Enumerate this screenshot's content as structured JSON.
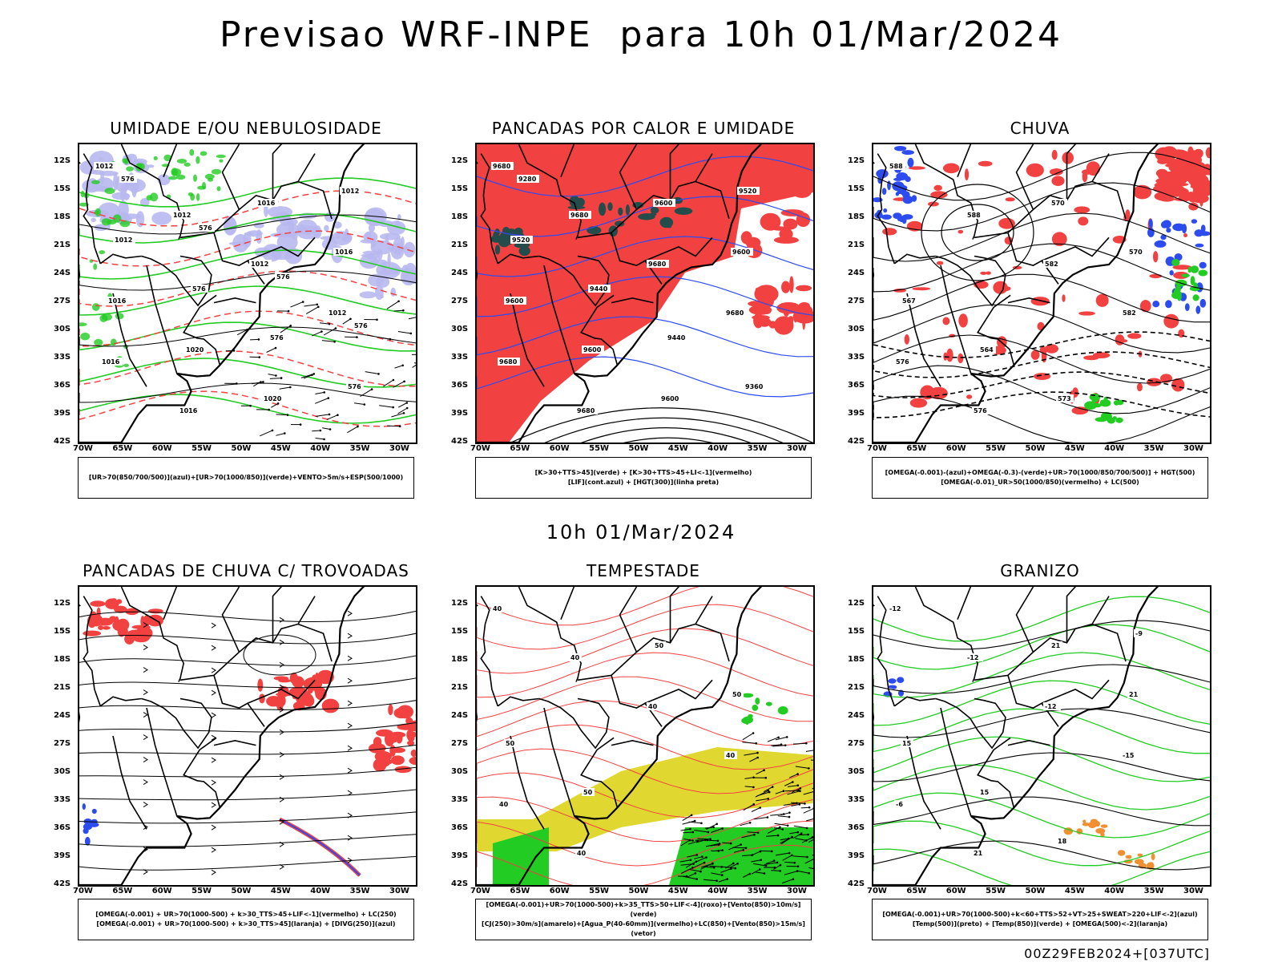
{
  "main_title": "Previsao WRF-INPE  para 10h 01/Mar/2024",
  "row_label": "10h 01/Mar/2024",
  "footer_run": "00Z29FEB2024+[037UTC]",
  "axis": {
    "lat_labels": [
      "12S",
      "15S",
      "18S",
      "21S",
      "24S",
      "27S",
      "30S",
      "33S",
      "36S",
      "39S",
      "42S"
    ],
    "lon_labels": [
      "70W",
      "65W",
      "60W",
      "55W",
      "50W",
      "45W",
      "40W",
      "35W",
      "30W"
    ]
  },
  "colors": {
    "red": "#f24141",
    "green": "#22cc22",
    "blue": "#2d4cf0",
    "lavender": "#b8b8f0",
    "darkteal": "#244c4a",
    "yellow": "#e0d830",
    "orange": "#f09030"
  },
  "panels": [
    {
      "title": "UMIDADE E/OU NEBULOSIDADE",
      "legend": [
        "[UR>70(850/700/500)](azul)+[UR>70(1000/850)](verde)+VENTO>5m/s+ESP(500/1000)"
      ],
      "contour_labels": [
        "1012",
        "1012",
        "1012",
        "1012",
        "1016",
        "1016",
        "1016",
        "1016",
        "1016",
        "1020",
        "1020",
        "1012",
        "1012",
        "576",
        "576",
        "576",
        "576",
        "576",
        "576",
        "576"
      ]
    },
    {
      "title": "PANCADAS POR CALOR E UMIDADE",
      "legend": [
        "[K>30+TTS>45](verde) + [K>30+TTS>45+LI<-1](vermelho)",
        "[LIF](cont.azul) + [HGT(300)](linha preta)"
      ],
      "contour_labels": [
        "9680",
        "9680",
        "9680",
        "9680",
        "9680",
        "9680",
        "9600",
        "9600",
        "9600",
        "9600",
        "9600",
        "9520",
        "9520",
        "9440",
        "9440",
        "9360",
        "9280"
      ]
    },
    {
      "title": "CHUVA",
      "legend": [
        "[OMEGA(-0.001)-(azul)+OMEGA(-0.3)-(verde)+UR>70(1000/850/700/500)] + HGT(500)",
        "[OMEGA(-0.01)_UR>50(1000/850)(vermelho) + LC(500)"
      ],
      "contour_labels": [
        "588",
        "588",
        "582",
        "582",
        "576",
        "576",
        "570",
        "570",
        "567",
        "564",
        "573"
      ]
    },
    {
      "title": "PANCADAS DE CHUVA C/ TROVOADAS",
      "legend": [
        "[OMEGA(-0.001) + UR>70(1000-500) + k>30_TTS>45+LIF<-1](vermelho) + LC(250)",
        "[OMEGA(-0.001) + UR>70(1000-500) + k>30_TTS>45](laranja) + [DIVG(250)](azul)"
      ],
      "contour_labels": []
    },
    {
      "title": "TEMPESTADE",
      "legend": [
        "[OMEGA(-0.001)+UR>70(1000-500)+k>35_TTS>50+LIF<-4](roxo)+[Vento(850)>10m/s](verde)",
        "[CJ(250)>30m/s](amarelo)+[Agua_P(40-60mm)](vermelho)+LC(850)+[Vento(850)>15m/s](vetor)"
      ],
      "contour_labels": [
        "40",
        "40",
        "40",
        "40",
        "40",
        "40",
        "50",
        "50",
        "50",
        "50"
      ]
    },
    {
      "title": "GRANIZO",
      "legend": [
        "[OMEGA(-0.001)+UR>70(1000-500)+k<60+TTS>52+VT>25+SWEAT>220+LIF<-2](azul)",
        "[Temp(500)](preto) + [Temp(850)](verde) + [OMEGA(500)<-2](laranja)"
      ],
      "contour_labels": [
        "-12",
        "-12",
        "-12",
        "-15",
        "-6",
        "21",
        "21",
        "21",
        "15",
        "15",
        "18",
        "-9"
      ]
    }
  ]
}
